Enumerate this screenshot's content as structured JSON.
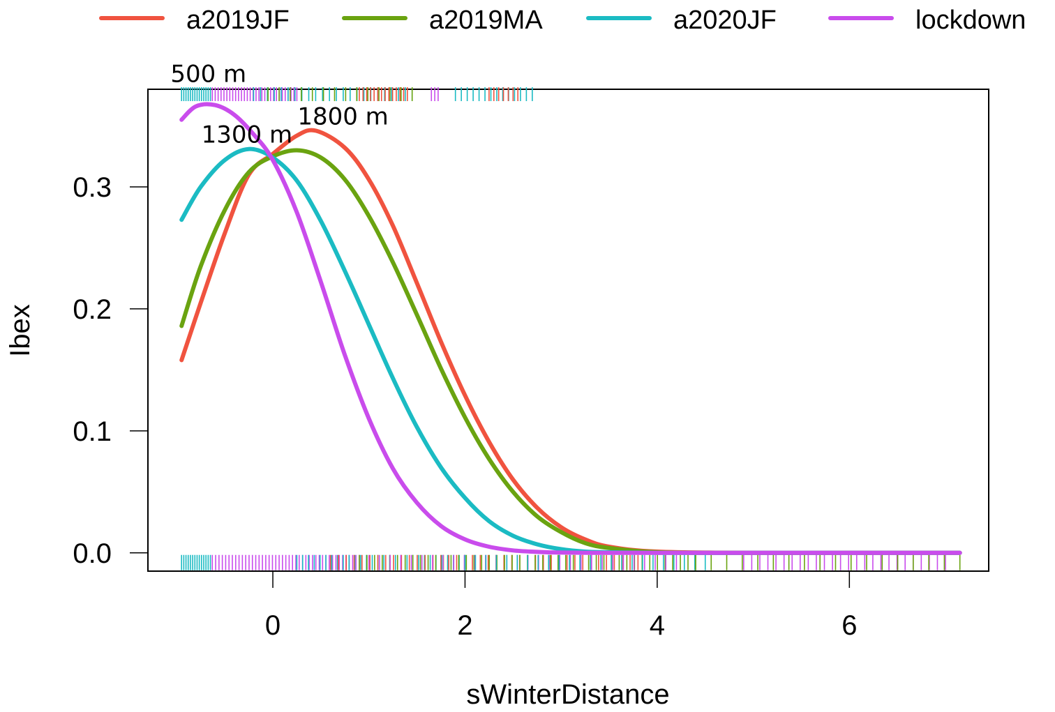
{
  "chart_data": {
    "type": "line",
    "title": "",
    "xlabel": "sWinterDistance",
    "ylabel": "Ibex",
    "xlim": [
      -1.3,
      7.45
    ],
    "ylim": [
      -0.015,
      0.38
    ],
    "x_ticks": [
      0,
      2,
      4,
      6
    ],
    "y_ticks": [
      0.0,
      0.1,
      0.2,
      0.3
    ],
    "x_tick_labels": [
      "0",
      "2",
      "4",
      "6"
    ],
    "y_tick_labels": [
      "0.0",
      "0.1",
      "0.2",
      "0.3"
    ],
    "grid": false,
    "legend_position": "top",
    "series": [
      {
        "name": "a2019JF",
        "color": "#F0533F",
        "x": [
          -0.95,
          -0.75,
          -0.5,
          -0.25,
          0,
          0.25,
          0.45,
          0.75,
          1.0,
          1.25,
          1.5,
          1.75,
          2.0,
          2.25,
          2.5,
          2.75,
          3.0,
          3.25,
          3.5,
          4.0,
          5.0,
          6.0,
          7.15
        ],
        "y": [
          0.158,
          0.205,
          0.262,
          0.31,
          0.327,
          0.342,
          0.346,
          0.332,
          0.306,
          0.268,
          0.221,
          0.173,
          0.129,
          0.091,
          0.06,
          0.037,
          0.021,
          0.011,
          0.005,
          0.001,
          0.0,
          0.0,
          0.0
        ]
      },
      {
        "name": "a2019MA",
        "color": "#6AA310",
        "x": [
          -0.95,
          -0.75,
          -0.5,
          -0.25,
          0,
          0.25,
          0.5,
          0.75,
          1.0,
          1.25,
          1.5,
          1.75,
          2.0,
          2.25,
          2.5,
          2.75,
          3.0,
          3.25,
          3.5,
          4.0,
          5.0,
          6.0,
          7.15
        ],
        "y": [
          0.186,
          0.235,
          0.281,
          0.312,
          0.325,
          0.33,
          0.324,
          0.306,
          0.276,
          0.238,
          0.195,
          0.151,
          0.111,
          0.077,
          0.05,
          0.03,
          0.017,
          0.008,
          0.004,
          0.0005,
          0.0,
          0.0,
          0.0
        ]
      },
      {
        "name": "a2020JF",
        "color": "#1BBBC3",
        "x": [
          -0.95,
          -0.75,
          -0.5,
          -0.25,
          0,
          0.25,
          0.5,
          0.75,
          1.0,
          1.25,
          1.5,
          1.75,
          2.0,
          2.25,
          2.5,
          2.75,
          3.0,
          3.25,
          3.5,
          4.0,
          5.0,
          6.0,
          7.15
        ],
        "y": [
          0.273,
          0.3,
          0.322,
          0.331,
          0.324,
          0.305,
          0.272,
          0.231,
          0.187,
          0.143,
          0.103,
          0.07,
          0.045,
          0.026,
          0.014,
          0.007,
          0.003,
          0.001,
          0.0005,
          0.0,
          0.0,
          0.0,
          0.0
        ]
      },
      {
        "name": "lockdown",
        "color": "#C94CEC",
        "x": [
          -0.95,
          -0.8,
          -0.6,
          -0.4,
          -0.2,
          0,
          0.25,
          0.5,
          0.75,
          1.0,
          1.25,
          1.5,
          1.75,
          2.0,
          2.25,
          2.5,
          2.75,
          3.0,
          3.5,
          4.0,
          5.0,
          6.0,
          7.15
        ],
        "y": [
          0.355,
          0.366,
          0.367,
          0.359,
          0.343,
          0.322,
          0.279,
          0.222,
          0.162,
          0.11,
          0.069,
          0.041,
          0.022,
          0.011,
          0.005,
          0.002,
          0.0008,
          0.0002,
          0.0,
          0.0,
          0.0,
          0.0,
          0.0
        ]
      }
    ],
    "annotations": [
      {
        "text": "500 m",
        "x": -0.67,
        "y": 0.393
      },
      {
        "text": "1300 m",
        "x": -0.27,
        "y": 0.343
      },
      {
        "text": "1800 m",
        "x": 0.73,
        "y": 0.358
      }
    ],
    "rug_top": {
      "y": 0.376,
      "segments": [
        {
          "series": "a2020JF",
          "from": -0.95,
          "to": -0.65,
          "n": 14
        },
        {
          "series": "lockdown",
          "from": -0.63,
          "to": 0.25,
          "n": 30
        },
        {
          "series": "a2020JF",
          "from": -0.2,
          "to": 1.45,
          "n": 24
        },
        {
          "series": "a2019MA",
          "from": -0.05,
          "to": 1.45,
          "n": 14
        },
        {
          "series": "a2019JF",
          "from": 0.9,
          "to": 1.4,
          "n": 14
        },
        {
          "series": "lockdown",
          "from": 1.65,
          "to": 1.72,
          "n": 3
        },
        {
          "series": "a2020JF",
          "from": 1.9,
          "to": 2.7,
          "n": 14
        },
        {
          "series": "a2019JF",
          "from": 2.25,
          "to": 2.55,
          "n": 7
        }
      ]
    },
    "rug_bottom": {
      "y": -0.008,
      "segments": [
        {
          "series": "a2020JF",
          "from": -0.95,
          "to": -0.65,
          "n": 14
        },
        {
          "series": "lockdown",
          "from": -0.63,
          "to": 0.9,
          "n": 45
        },
        {
          "series": "a2020JF",
          "from": 0.25,
          "to": 2.0,
          "n": 30
        },
        {
          "series": "a2019JF",
          "from": 0.6,
          "to": 3.8,
          "n": 40
        },
        {
          "series": "a2019MA",
          "from": 0.9,
          "to": 4.4,
          "n": 45
        },
        {
          "series": "lockdown",
          "from": 1.0,
          "to": 4.2,
          "n": 30
        },
        {
          "series": "a2020JF",
          "from": 2.0,
          "to": 4.5,
          "n": 24
        },
        {
          "series": "lockdown",
          "from": 4.9,
          "to": 7.0,
          "n": 26
        },
        {
          "series": "a2019MA",
          "from": 4.4,
          "to": 7.15,
          "n": 18
        }
      ]
    }
  }
}
